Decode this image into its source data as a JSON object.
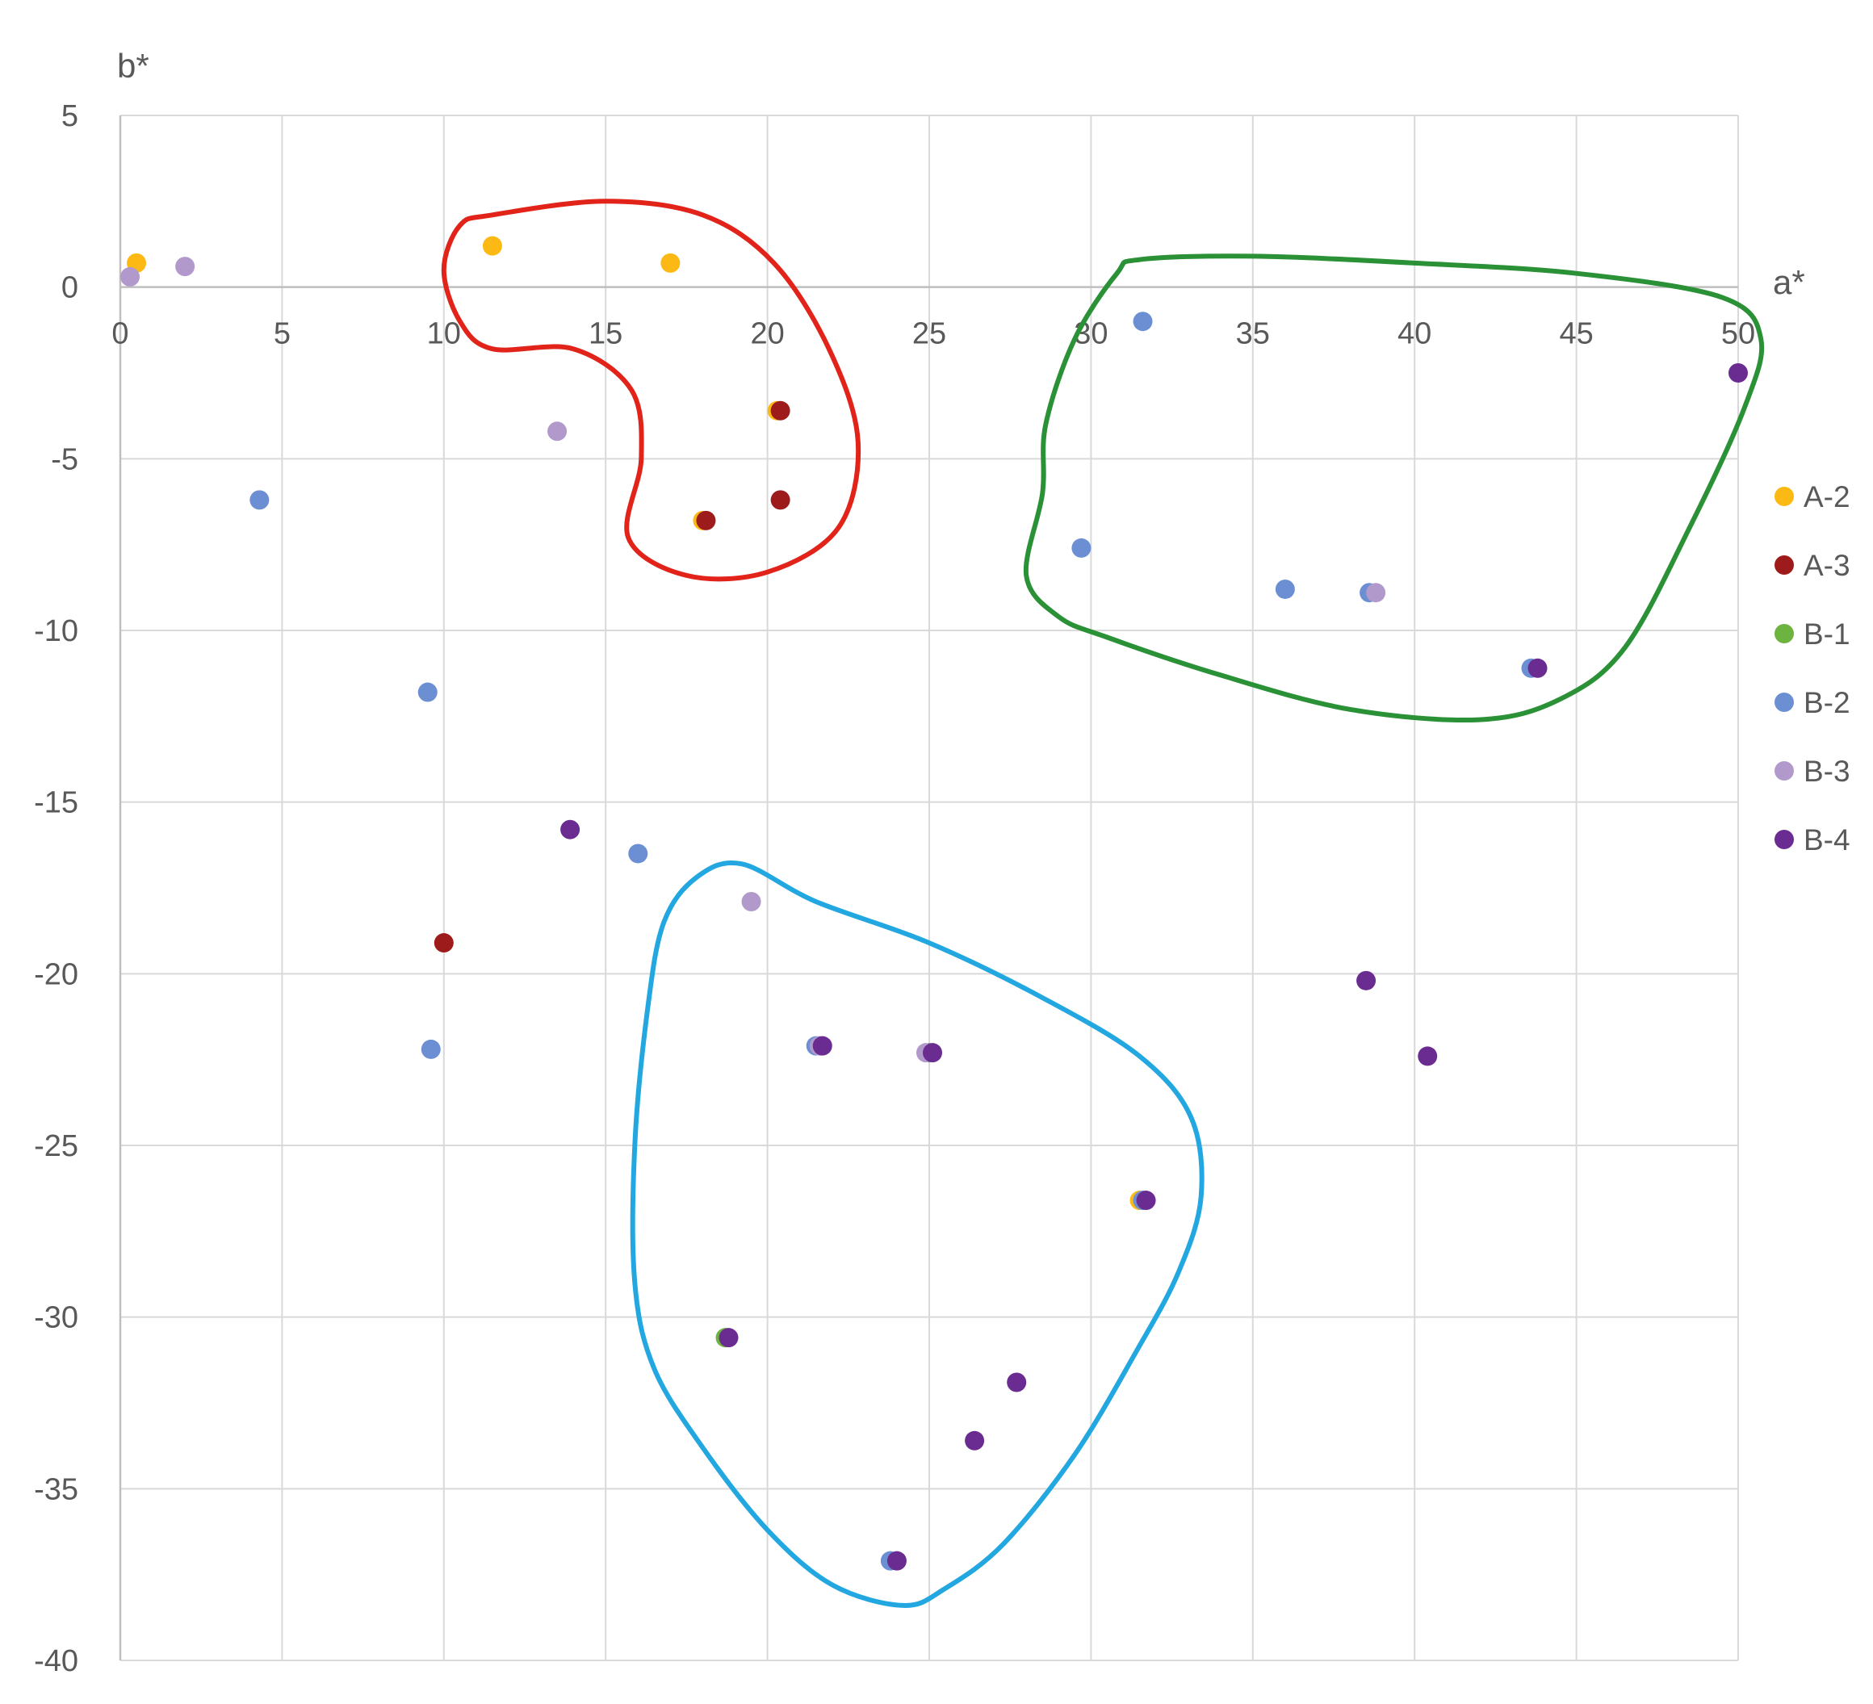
{
  "chart_data": {
    "type": "scatter",
    "title": "",
    "xlabel": "a*",
    "ylabel": "b*",
    "xlim": [
      0,
      50
    ],
    "ylim": [
      -40,
      5
    ],
    "x_ticks": [
      0,
      5,
      10,
      15,
      20,
      25,
      30,
      35,
      40,
      45,
      50
    ],
    "y_ticks": [
      5,
      0,
      -5,
      -10,
      -15,
      -20,
      -25,
      -30,
      -35,
      -40
    ],
    "grid": true,
    "legend_position": "right",
    "series": [
      {
        "name": "A-2",
        "color": "#FDB913",
        "points": [
          [
            0.5,
            0.7
          ],
          [
            11.5,
            1.2
          ],
          [
            17,
            0.7
          ],
          [
            20.3,
            -3.6
          ],
          [
            18,
            -6.8
          ],
          [
            31.5,
            -26.6
          ]
        ]
      },
      {
        "name": "A-3",
        "color": "#9E1B1B",
        "points": [
          [
            20.4,
            -3.6
          ],
          [
            18.1,
            -6.8
          ],
          [
            20.4,
            -6.2
          ],
          [
            10,
            -19.1
          ]
        ]
      },
      {
        "name": "B-1",
        "color": "#6DB33F",
        "points": [
          [
            25,
            -22.3
          ],
          [
            18.7,
            -30.6
          ]
        ]
      },
      {
        "name": "B-2",
        "color": "#6C8FD3",
        "points": [
          [
            4.3,
            -6.2
          ],
          [
            31.6,
            -1.0
          ],
          [
            29.7,
            -7.6
          ],
          [
            36,
            -8.8
          ],
          [
            38.6,
            -8.9
          ],
          [
            43.6,
            -11.1
          ],
          [
            9.5,
            -11.8
          ],
          [
            16,
            -16.5
          ],
          [
            9.6,
            -22.2
          ],
          [
            21.5,
            -22.1
          ],
          [
            31.6,
            -26.6
          ],
          [
            23.8,
            -37.1
          ]
        ]
      },
      {
        "name": "B-3",
        "color": "#B199CC",
        "points": [
          [
            0.3,
            0.3
          ],
          [
            2,
            0.6
          ],
          [
            13.5,
            -4.2
          ],
          [
            38.8,
            -8.9
          ],
          [
            19.5,
            -17.9
          ],
          [
            21.6,
            -22.1
          ],
          [
            24.9,
            -22.3
          ]
        ]
      },
      {
        "name": "B-4",
        "color": "#6A2C91",
        "points": [
          [
            50,
            -2.5
          ],
          [
            43.8,
            -11.1
          ],
          [
            13.9,
            -15.8
          ],
          [
            38.5,
            -20.2
          ],
          [
            40.4,
            -22.4
          ],
          [
            21.7,
            -22.1
          ],
          [
            25.1,
            -22.3
          ],
          [
            31.7,
            -26.6
          ],
          [
            18.8,
            -30.6
          ],
          [
            27.7,
            -31.9
          ],
          [
            26.4,
            -33.6
          ],
          [
            24,
            -37.1
          ]
        ]
      }
    ],
    "annotations": [
      {
        "shape": "closed-outline",
        "color": "#E2231A",
        "points": [
          [
            11.5,
            2.1
          ],
          [
            15,
            2.5
          ],
          [
            18,
            2.1
          ],
          [
            20.2,
            0.7
          ],
          [
            21.9,
            -1.8
          ],
          [
            22.8,
            -4.5
          ],
          [
            22.2,
            -7
          ],
          [
            20,
            -8.3
          ],
          [
            17.5,
            -8.4
          ],
          [
            15.7,
            -7.3
          ],
          [
            16.1,
            -5
          ],
          [
            15.8,
            -3
          ],
          [
            14,
            -1.8
          ],
          [
            11.5,
            -1.8
          ],
          [
            10.5,
            -1
          ],
          [
            10,
            0.5
          ],
          [
            10.5,
            1.8
          ]
        ]
      },
      {
        "shape": "closed-outline",
        "color": "#2A9136",
        "points": [
          [
            31.5,
            0.8
          ],
          [
            35,
            0.9
          ],
          [
            40,
            0.7
          ],
          [
            45,
            0.4
          ],
          [
            49.5,
            -0.3
          ],
          [
            50.7,
            -1.5
          ],
          [
            50.2,
            -3.5
          ],
          [
            48.5,
            -7
          ],
          [
            46.5,
            -10.5
          ],
          [
            44.5,
            -12
          ],
          [
            42,
            -12.6
          ],
          [
            38,
            -12.3
          ],
          [
            34,
            -11.3
          ],
          [
            30.5,
            -10.2
          ],
          [
            29,
            -9.6
          ],
          [
            28,
            -8.4
          ],
          [
            28.5,
            -6
          ],
          [
            28.6,
            -4
          ],
          [
            29.5,
            -1.5
          ],
          [
            30.8,
            0.4
          ]
        ]
      },
      {
        "shape": "closed-outline",
        "color": "#22A7E0",
        "points": [
          [
            19.2,
            -16.8
          ],
          [
            21.5,
            -17.9
          ],
          [
            25,
            -19.1
          ],
          [
            28.5,
            -20.7
          ],
          [
            31.5,
            -22.4
          ],
          [
            33.1,
            -24.2
          ],
          [
            33.4,
            -26.5
          ],
          [
            32.7,
            -28.7
          ],
          [
            31.4,
            -31
          ],
          [
            29.5,
            -34
          ],
          [
            27.3,
            -36.6
          ],
          [
            25.5,
            -37.9
          ],
          [
            24.2,
            -38.4
          ],
          [
            22,
            -37.8
          ],
          [
            20,
            -36.2
          ],
          [
            18,
            -33.8
          ],
          [
            16.5,
            -31.5
          ],
          [
            15.9,
            -29
          ],
          [
            15.9,
            -25
          ],
          [
            16.3,
            -21
          ],
          [
            16.8,
            -18.5
          ],
          [
            17.8,
            -17.2
          ]
        ]
      }
    ]
  }
}
